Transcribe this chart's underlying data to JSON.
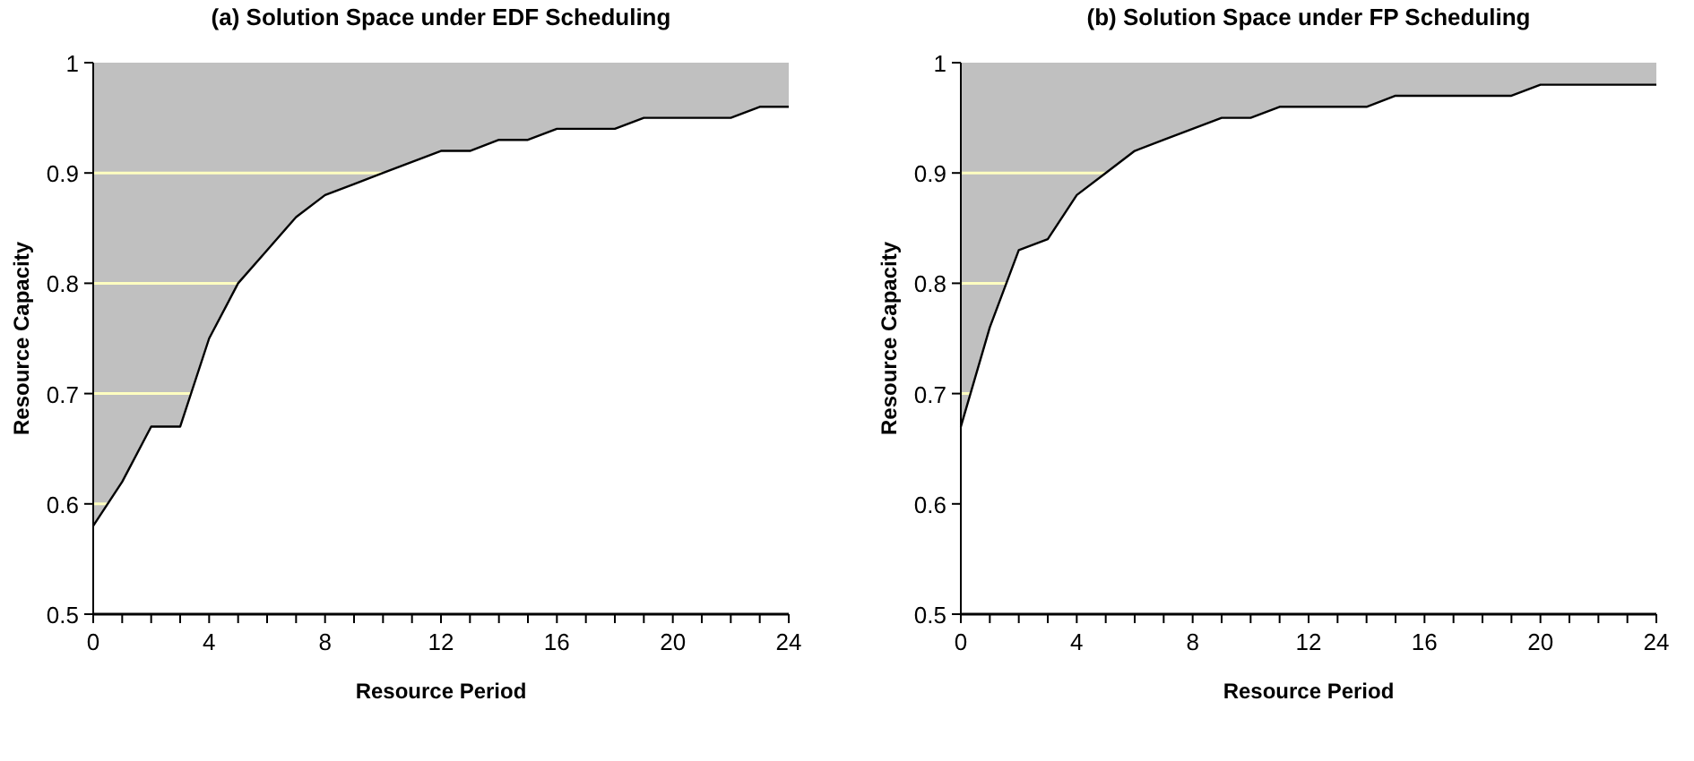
{
  "chart_data": [
    {
      "type": "line",
      "title": "(a)  Solution  Space  under  EDF  Scheduling",
      "xlabel": "Resource Period",
      "ylabel": "Resource Capacity",
      "x": [
        0,
        1,
        2,
        3,
        4,
        5,
        6,
        7,
        8,
        9,
        10,
        11,
        12,
        13,
        14,
        15,
        16,
        17,
        18,
        19,
        20,
        21,
        22,
        23,
        24
      ],
      "xlim": [
        0,
        24
      ],
      "xticks": [
        0,
        {
          "value": 1,
          "label": null
        },
        {
          "value": 2,
          "label": null
        },
        {
          "value": 3,
          "label": null
        },
        4,
        {
          "value": 5,
          "label": null
        },
        {
          "value": 6,
          "label": null
        },
        {
          "value": 7,
          "label": null
        },
        8,
        {
          "value": 9,
          "label": null
        },
        {
          "value": 10,
          "label": null
        },
        {
          "value": 11,
          "label": null
        },
        12,
        {
          "value": 13,
          "label": null
        },
        {
          "value": 14,
          "label": null
        },
        {
          "value": 15,
          "label": null
        },
        16,
        {
          "value": 17,
          "label": null
        },
        {
          "value": 18,
          "label": null
        },
        {
          "value": 19,
          "label": null
        },
        20,
        {
          "value": 21,
          "label": null
        },
        {
          "value": 22,
          "label": null
        },
        {
          "value": 23,
          "label": null
        },
        24
      ],
      "ylim": [
        0.5,
        1
      ],
      "yticks": [
        0.5,
        0.6,
        0.7,
        0.8,
        0.9,
        1
      ],
      "grid": "y",
      "marker": "none",
      "line_style": "solid",
      "series": [
        {
          "color": "#000000",
          "values": [
            0.58,
            0.62,
            0.67,
            0.67,
            0.75,
            0.8,
            0.83,
            0.86,
            0.88,
            0.89,
            0.9,
            0.91,
            0.92,
            0.92,
            0.93,
            0.93,
            0.94,
            0.94,
            0.94,
            0.95,
            0.95,
            0.95,
            0.95,
            0.96,
            0.96
          ],
          "lower": [
            0.58,
            0.62,
            0.67,
            0.67,
            0.75,
            0.8,
            0.83,
            0.86,
            0.88,
            0.89,
            0.9,
            0.91,
            0.92,
            0.92,
            0.93,
            0.93,
            0.94,
            0.94,
            0.94,
            0.95,
            0.95,
            0.95,
            0.95,
            0.96,
            0.96
          ],
          "upper": [
            1,
            1,
            1,
            1,
            1,
            1,
            1,
            1,
            1,
            1,
            1,
            1,
            1,
            1,
            1,
            1,
            1,
            1,
            1,
            1,
            1,
            1,
            1,
            1,
            1
          ]
        }
      ]
    },
    {
      "type": "line",
      "title": "(b)  Solution  Space  under  FP  Scheduling",
      "xlabel": "Resource Period",
      "ylabel": "Resource Capacity",
      "x": [
        0,
        1,
        2,
        3,
        4,
        5,
        6,
        7,
        8,
        9,
        10,
        11,
        12,
        13,
        14,
        15,
        16,
        17,
        18,
        19,
        20,
        21,
        22,
        23,
        24
      ],
      "xlim": [
        0,
        24
      ],
      "xticks": [
        0,
        {
          "value": 1,
          "label": null
        },
        {
          "value": 2,
          "label": null
        },
        {
          "value": 3,
          "label": null
        },
        4,
        {
          "value": 5,
          "label": null
        },
        {
          "value": 6,
          "label": null
        },
        {
          "value": 7,
          "label": null
        },
        8,
        {
          "value": 9,
          "label": null
        },
        {
          "value": 10,
          "label": null
        },
        {
          "value": 11,
          "label": null
        },
        12,
        {
          "value": 13,
          "label": null
        },
        {
          "value": 14,
          "label": null
        },
        {
          "value": 15,
          "label": null
        },
        16,
        {
          "value": 17,
          "label": null
        },
        {
          "value": 18,
          "label": null
        },
        {
          "value": 19,
          "label": null
        },
        20,
        {
          "value": 21,
          "label": null
        },
        {
          "value": 22,
          "label": null
        },
        {
          "value": 23,
          "label": null
        },
        24
      ],
      "ylim": [
        0.5,
        1
      ],
      "yticks": [
        0.5,
        0.6,
        0.7,
        0.8,
        0.9,
        1
      ],
      "grid": "y",
      "marker": "none",
      "line_style": "solid",
      "series": [
        {
          "color": "#000000",
          "values": [
            0.67,
            0.76,
            0.83,
            0.84,
            0.88,
            0.9,
            0.92,
            0.93,
            0.94,
            0.95,
            0.95,
            0.96,
            0.96,
            0.96,
            0.96,
            0.97,
            0.97,
            0.97,
            0.97,
            0.97,
            0.98,
            0.98,
            0.98,
            0.98,
            0.98
          ],
          "lower": [
            0.67,
            0.76,
            0.83,
            0.84,
            0.88,
            0.9,
            0.92,
            0.93,
            0.94,
            0.95,
            0.95,
            0.96,
            0.96,
            0.96,
            0.96,
            0.97,
            0.97,
            0.97,
            0.97,
            0.97,
            0.98,
            0.98,
            0.98,
            0.98,
            0.98
          ],
          "upper": [
            1,
            1,
            1,
            1,
            1,
            1,
            1,
            1,
            1,
            1,
            1,
            1,
            1,
            1,
            1,
            1,
            1,
            1,
            1,
            1,
            1,
            1,
            1,
            1,
            1
          ]
        }
      ]
    }
  ]
}
